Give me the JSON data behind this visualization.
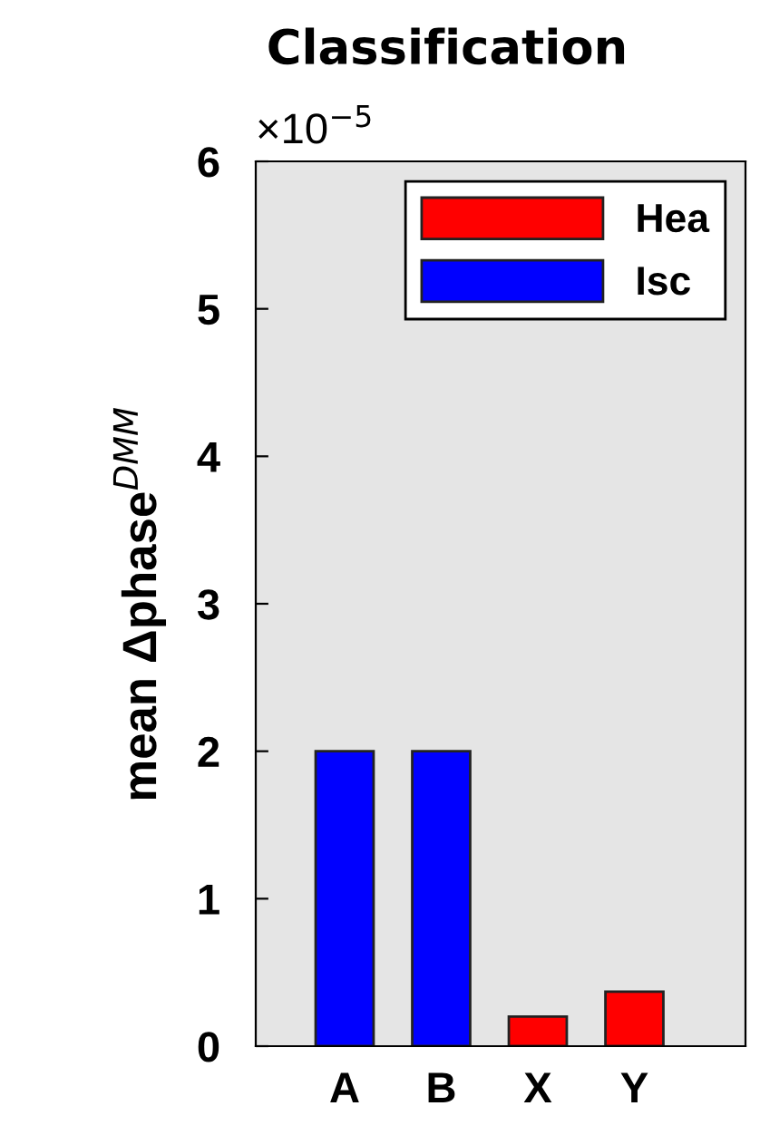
{
  "chart_data": {
    "type": "bar",
    "title": "Classification",
    "ylabel": "mean Δphase$^{DMM}$",
    "categories": [
      "A",
      "B",
      "X",
      "Y"
    ],
    "series": [
      {
        "name": "Hea",
        "color": "#ff0000",
        "values": [
          null,
          null,
          0.2,
          0.37
        ]
      },
      {
        "name": "Isc",
        "color": "#0000ff",
        "values": [
          2.0,
          2.0,
          null,
          null
        ]
      }
    ],
    "ylim": [
      0,
      6
    ],
    "yticks": [
      0,
      1,
      2,
      3,
      4,
      5,
      6
    ],
    "annotations": [
      "×10$^{−5}$"
    ],
    "legend": "top right",
    "grid": false
  }
}
